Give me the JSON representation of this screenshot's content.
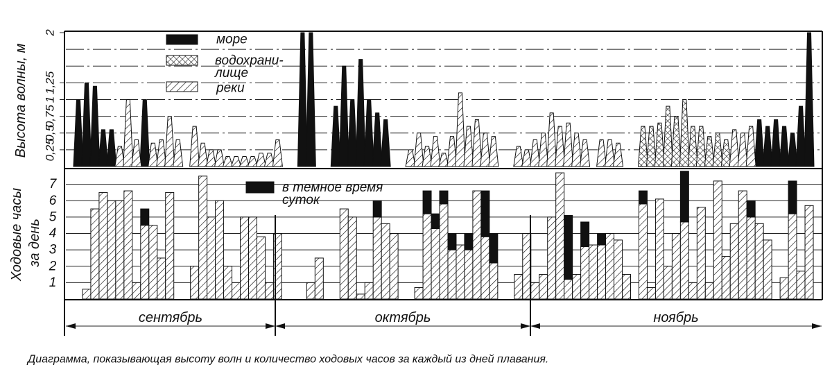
{
  "chart_data": [
    {
      "type": "area",
      "ylabel": "Высота волны, м",
      "x": [
        1,
        2,
        3,
        4,
        5,
        6,
        7,
        8,
        9,
        10,
        11,
        12,
        13,
        14,
        15,
        16,
        17,
        18,
        19,
        20,
        21,
        22,
        23,
        24,
        25,
        26,
        27,
        28,
        29,
        30,
        31,
        32,
        33,
        34,
        35,
        36,
        37,
        38,
        39,
        40,
        41,
        42,
        43,
        44,
        45,
        46,
        47,
        48,
        49,
        50,
        51,
        52,
        53,
        54,
        55,
        56,
        57,
        58,
        59,
        60,
        61,
        62,
        63,
        64,
        65,
        66,
        67,
        68,
        69,
        70,
        71,
        72,
        73,
        74,
        75,
        76,
        77,
        78,
        79,
        80,
        81,
        82,
        83,
        84,
        85,
        86,
        87,
        88,
        89
      ],
      "xlim": [
        0,
        91
      ],
      "ylim": [
        0,
        2
      ],
      "yticks": [
        {
          "value": 0.25,
          "label": "0,25"
        },
        {
          "value": 0.5,
          "label": "0,5"
        },
        {
          "value": 0.75,
          "label": "0,75"
        },
        1,
        {
          "value": 1.25,
          "label": "1,25"
        },
        2
      ],
      "ygrid": [
        0.25,
        0.5,
        0.75,
        1,
        1.25,
        1.5,
        1.75
      ],
      "series": [
        {
          "name": "море",
          "color": "#111",
          "pattern": "solid",
          "values": [
            1.0,
            1.25,
            1.2,
            0.55,
            0.55,
            null,
            null,
            null,
            1.0,
            null,
            null,
            null,
            null,
            null,
            null,
            null,
            null,
            null,
            null,
            null,
            null,
            null,
            null,
            null,
            null,
            null,
            null,
            2.0,
            2.0,
            null,
            null,
            0.9,
            1.5,
            1.0,
            1.6,
            1.0,
            0.8,
            0.7,
            null,
            null,
            null,
            null,
            null,
            null,
            null,
            null,
            null,
            null,
            null,
            null,
            null,
            null,
            null,
            null,
            null,
            null,
            null,
            null,
            null,
            null,
            null,
            null,
            null,
            null,
            null,
            null,
            null,
            null,
            null,
            null,
            null,
            null,
            null,
            null,
            null,
            null,
            null,
            null,
            null,
            null,
            null,
            null,
            0.7,
            0.6,
            0.7,
            0.6,
            0.5,
            0.9,
            2.0
          ]
        },
        {
          "name": "водохрани-\nлище",
          "color": "#111",
          "pattern": "crosshatch",
          "values": [
            null,
            null,
            null,
            null,
            null,
            null,
            null,
            null,
            null,
            null,
            null,
            null,
            null,
            null,
            null,
            null,
            null,
            null,
            null,
            null,
            null,
            null,
            null,
            null,
            null,
            null,
            null,
            null,
            null,
            null,
            null,
            null,
            null,
            null,
            null,
            null,
            null,
            null,
            null,
            null,
            null,
            null,
            null,
            null,
            null,
            null,
            null,
            null,
            null,
            null,
            null,
            null,
            null,
            null,
            null,
            null,
            null,
            null,
            null,
            null,
            null,
            null,
            null,
            null,
            null,
            null,
            null,
            null,
            0.6,
            0.6,
            0.65,
            0.9,
            0.75,
            1.0,
            0.6,
            0.6,
            0.45,
            0.5,
            0.4,
            null,
            null,
            null,
            null,
            null,
            null,
            null,
            null,
            null,
            null
          ]
        },
        {
          "name": "реки",
          "color": "#111",
          "pattern": "hatch",
          "values": [
            null,
            null,
            null,
            null,
            null,
            0.3,
            1.0,
            0.4,
            null,
            0.35,
            0.4,
            0.75,
            0.4,
            null,
            0.6,
            0.35,
            0.25,
            0.25,
            0.15,
            0.15,
            0.15,
            0.15,
            0.2,
            0.2,
            0.4,
            null,
            null,
            null,
            null,
            null,
            null,
            null,
            null,
            null,
            null,
            null,
            null,
            null,
            null,
            null,
            0.25,
            0.5,
            0.3,
            0.45,
            0.2,
            0.45,
            1.1,
            0.6,
            0.7,
            0.5,
            0.45,
            null,
            null,
            0.3,
            0.25,
            0.4,
            0.5,
            0.8,
            0.6,
            0.65,
            0.5,
            0.4,
            null,
            0.4,
            0.4,
            0.35,
            null,
            null,
            null,
            null,
            null,
            null,
            null,
            null,
            null,
            null,
            null,
            null,
            null,
            0.55,
            0.5,
            0.6,
            null,
            null,
            null,
            null,
            null,
            null,
            null
          ]
        }
      ]
    },
    {
      "type": "stacked_bar",
      "ylabel": [
        "Ходовые часы",
        "за день"
      ],
      "x": [
        2,
        3,
        4,
        5,
        6,
        7,
        8,
        9,
        10,
        11,
        12,
        15,
        16,
        17,
        18,
        19,
        20,
        21,
        22,
        23,
        24,
        25,
        29,
        30,
        33,
        34,
        35,
        36,
        37,
        38,
        39,
        42,
        43,
        44,
        45,
        46,
        47,
        48,
        49,
        50,
        51,
        54,
        55,
        56,
        57,
        58,
        59,
        60,
        61,
        62,
        63,
        64,
        65,
        66,
        67,
        69,
        70,
        71,
        72,
        73,
        74,
        75,
        76,
        77,
        78,
        79,
        80,
        81,
        82,
        83,
        84,
        86,
        87,
        88,
        89
      ],
      "xlim": [
        0,
        91
      ],
      "ylim": [
        0,
        8
      ],
      "yticks": [
        1,
        2,
        3,
        4,
        5,
        6,
        7
      ],
      "grid": true,
      "series": [
        {
          "color": "#111",
          "pattern": "hatch",
          "values": [
            0.6,
            5.5,
            6.5,
            6,
            6,
            6.6,
            1,
            4.5,
            4.5,
            2.5,
            6.5,
            2,
            7.5,
            5,
            6,
            2,
            1,
            5,
            5,
            3.8,
            1,
            4,
            1,
            2.5,
            5.5,
            5,
            0.3,
            1,
            5,
            4.6,
            4,
            0.7,
            5.2,
            4.3,
            5.8,
            3,
            3.3,
            3,
            6.6,
            3.8,
            2.2,
            1.5,
            4,
            1,
            1.5,
            5,
            7.7,
            1.2,
            1.5,
            3.2,
            3.3,
            3.3,
            4,
            3.6,
            1.5,
            5.8,
            0.7,
            6.1,
            2,
            4,
            4.7,
            1,
            5.6,
            1,
            7.2,
            2.6,
            4.6,
            6.6,
            5,
            4.6,
            3.6,
            1.3,
            5.2,
            1.7,
            5.7
          ]
        },
        {
          "name": "в темное время\nсуток",
          "color": "#111",
          "pattern": "solid",
          "values": [
            0,
            0,
            0,
            0,
            0,
            0,
            0,
            1,
            0,
            0,
            0,
            0,
            0,
            0,
            0,
            0,
            0,
            0,
            0,
            0,
            0,
            0,
            0,
            0,
            0,
            0,
            0,
            0,
            1,
            0,
            0,
            0,
            1.4,
            0.9,
            0.8,
            1,
            0,
            1,
            0,
            2.8,
            1.8,
            0,
            0,
            0,
            0,
            0,
            0,
            3.9,
            0,
            1.5,
            0,
            0.7,
            0,
            0,
            0,
            0.8,
            0,
            0,
            0,
            0,
            3.1,
            0,
            0,
            0,
            0,
            0,
            0,
            0,
            1,
            0,
            0,
            0,
            2,
            0,
            0
          ]
        }
      ],
      "months": [
        "сентябрь",
        "октябрь",
        "ноябрь"
      ]
    }
  ],
  "caption": "Диаграмма, показывающая высоту волн и количество ходовых часов за каждый из дней плавания."
}
